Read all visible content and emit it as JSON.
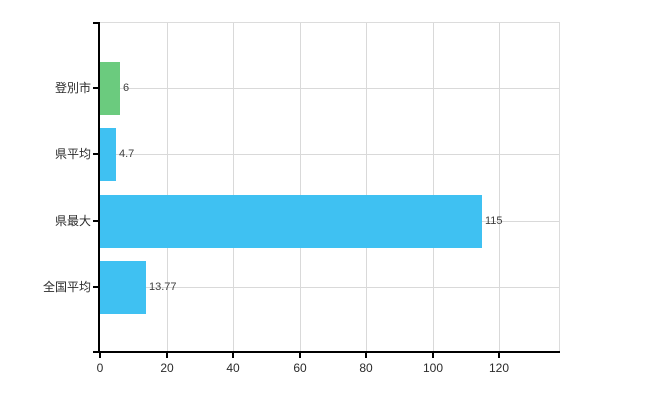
{
  "chart": {
    "background_color": "#ffffff",
    "axis_color": "#000000",
    "grid_color": "#d9d9d9",
    "border_color": "#dcdcdc",
    "category_label_color": "#2b2b2b",
    "value_label_color": "#3f3f3f"
  },
  "chart_data": {
    "type": "bar",
    "orientation": "horizontal",
    "title": "",
    "xlabel": "",
    "ylabel": "",
    "categories": [
      "登別市",
      "県平均",
      "県最大",
      "全国平均"
    ],
    "values": [
      6,
      4.7,
      115,
      13.77
    ],
    "value_labels": [
      "6",
      "4.7",
      "115",
      "13.77"
    ],
    "bar_colors": [
      "#6bcb7e",
      "#3fc1f2",
      "#3fc1f2",
      "#3fc1f2"
    ],
    "xlim": [
      0,
      138
    ],
    "x_ticks": [
      0,
      20,
      40,
      60,
      80,
      100,
      120
    ],
    "grid": true,
    "legend": false
  }
}
